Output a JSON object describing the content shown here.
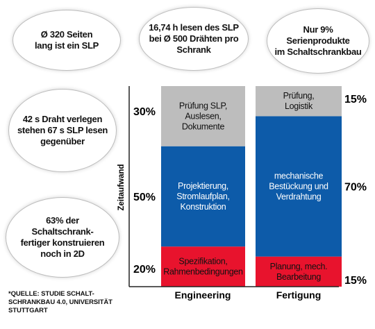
{
  "bubbles": [
    "Ø 320 Seiten\nlang ist ein SLP",
    "16,74 h lesen des SLP\nbei Ø 500 Drähten pro\nSchrank",
    "Nur 9%\nSerienprodukte\nim Schaltschrankbau",
    "42 s Draht verlegen\nstehen 67 s SLP lesen\ngegenüber",
    "63% der\nSchaltschrank-\nfertiger konstruieren\nnoch in 2D"
  ],
  "source": "*QUELLE: STUDIE SCHALT-\nSCHRANKBAU 4.0, UNIVERSITÄT\nSTUTTGART",
  "colors": {
    "top": "#bdbdbd",
    "middle": "#0d5ba9",
    "bottom": "#e8132d"
  },
  "chart_data": {
    "type": "bar",
    "stacked": true,
    "unit": "%",
    "ylabel": "Zeitaufwand",
    "ylim": [
      0,
      100
    ],
    "categories": [
      "Engineering",
      "Fertigung"
    ],
    "series": [
      {
        "name": "bottom",
        "values": [
          20,
          15
        ],
        "labels": [
          "Spezifikation,\nRahmenbedingungen",
          "Planung, mech.\nBearbeitung"
        ]
      },
      {
        "name": "middle",
        "values": [
          50,
          70
        ],
        "labels": [
          "Projektierung,\nStromlaufplan,\nKonstruktion",
          "mechanische\nBestückung und\nVerdrahtung"
        ]
      },
      {
        "name": "top",
        "values": [
          30,
          15
        ],
        "labels": [
          "Prüfung SLP,\nAuslesen,\nDokumente",
          "Prüfung,\nLogistik"
        ]
      }
    ],
    "left_percent_labels": [
      "20%",
      "50%",
      "30%"
    ],
    "right_percent_labels": [
      "15%",
      "70%",
      "15%"
    ],
    "grid": false,
    "legend": "none"
  }
}
